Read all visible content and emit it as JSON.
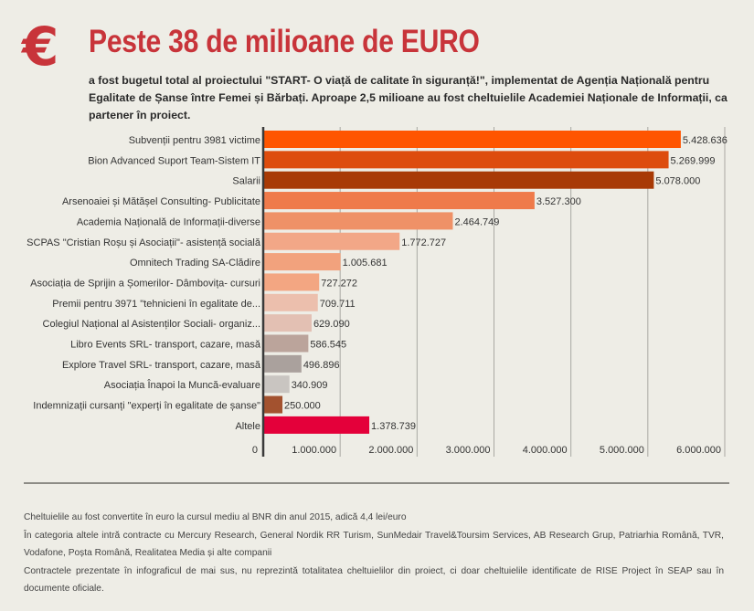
{
  "header": {
    "icon": "euro-icon",
    "icon_glyph": "€",
    "title": "Peste 38 de milioane de EURO",
    "subtitle": "a fost bugetul total al proiectului \"START- O viață de calitate în siguranță!\", implementat de Agenția Națională pentru Egalitate de Șanse între Femei și Bărbați. Aproape 2,5 milioane au fost cheltuielile Academiei Naționale de Informații, ca partener în proiect."
  },
  "chart_data": {
    "type": "bar",
    "orientation": "horizontal",
    "title": "",
    "xlabel": "",
    "ylabel": "",
    "xlim": [
      0,
      6000000
    ],
    "grid": true,
    "ticks": [
      0,
      1000000,
      2000000,
      3000000,
      4000000,
      5000000,
      6000000
    ],
    "tick_labels": [
      "0",
      "1.000.000",
      "2.000.000",
      "3.000.000",
      "4.000.000",
      "5.000.000",
      "6.000.000"
    ],
    "categories": [
      "Subvenții pentru 3981 victime",
      "Bion Advanced Suport Team-Sistem IT",
      "Salarii",
      "Arsenoaiei și Mătășel Consulting- Publicitate",
      "Academia Națională de Informații-diverse",
      "SCPAS \"Cristian Roșu și Asociații\"- asistență socială",
      "Omnitech Trading SA-Clădire",
      "Asociația de Sprijin a Șomerilor- Dâmbovița- cursuri",
      "Premii pentru 3971 \"tehnicieni în egalitate de...",
      "Colegiul Național al Asistenților Sociali- organiz...",
      "Libro Events SRL- transport, cazare, masă",
      "Explore Travel SRL- transport, cazare, masă",
      "Asociația Înapoi la Muncă-evaluare",
      "Indemnizații cursanți \"experți în egalitate de șanse\"",
      "Altele"
    ],
    "values": [
      5428636,
      5269999,
      5078000,
      3527300,
      2464749,
      1772727,
      1005681,
      727272,
      709711,
      629090,
      586545,
      496896,
      340909,
      250000,
      1378739
    ],
    "value_labels": [
      "5.428.636",
      "5.269.999",
      "5.078.000",
      "3.527.300",
      "2.464.749",
      "1.772.727",
      "1.005.681",
      "727.272",
      "709.711",
      "629.090",
      "586.545",
      "496.896",
      "340.909",
      "250.000",
      "1.378.739"
    ],
    "colors": [
      "#ff5500",
      "#dd4c0e",
      "#a83a06",
      "#ef7a4a",
      "#ef9167",
      "#f2a787",
      "#f2a27d",
      "#f3a682",
      "#ecbfad",
      "#e3c0b3",
      "#bba49b",
      "#aaa19d",
      "#c9c5c1",
      "#a3522f",
      "#e4003a"
    ]
  },
  "notes": [
    "Cheltuielile au fost convertite în euro la cursul mediu al BNR din anul 2015, adică 4,4 lei/euro",
    "În categoria altele intră contracte cu Mercury Research, General Nordik RR Turism, SunMedair Travel&Toursim Services, AB Research Grup, Patriarhia Română, TVR, Vodafone, Poșta Română, Realitatea Media și alte companii",
    "Contractele prezentate în infograficul de mai sus, nu reprezintă totalitatea cheltuielilor din proiect, ci doar cheltuielile identificate de RISE Project în SEAP sau în documente oficiale."
  ]
}
